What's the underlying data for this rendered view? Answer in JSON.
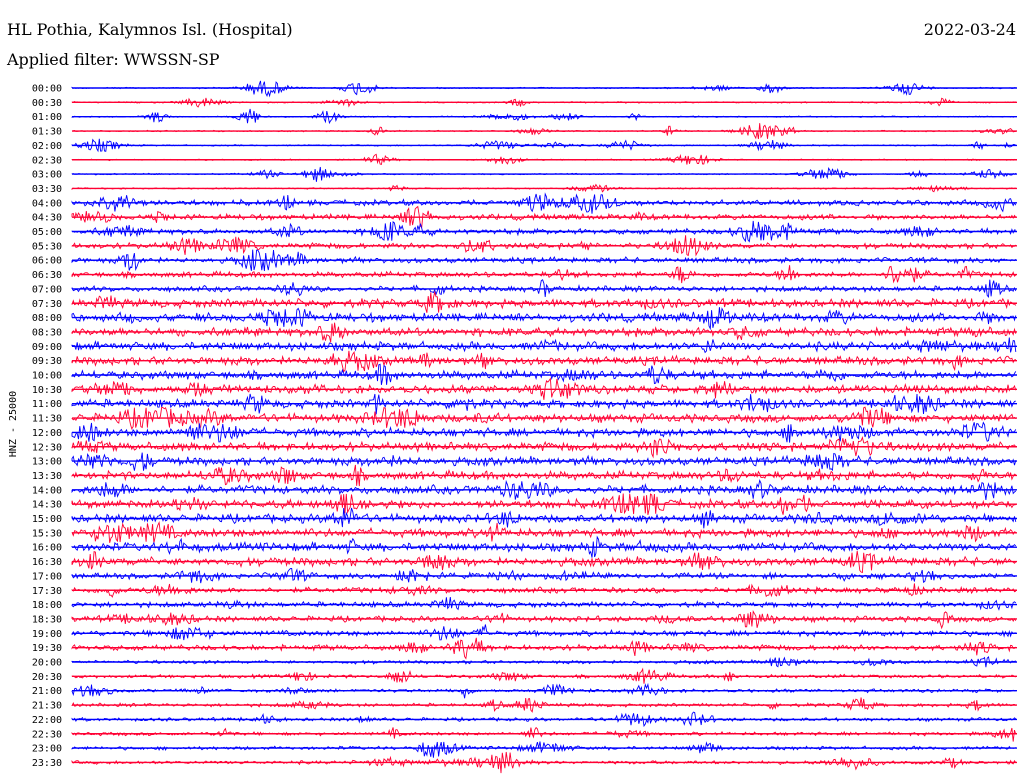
{
  "header": {
    "title": "HL Pothia, Kalymnos Isl. (Hospital)",
    "date": "2022-03-24",
    "filter": "Applied filter: WWSSN-SP"
  },
  "chart_data": {
    "type": "helicorder",
    "title": "HL Pothia, Kalymnos Isl. (Hospital)",
    "ylabel": "HNZ - 25000",
    "row_labels": [
      "00:00",
      "00:30",
      "01:00",
      "01:30",
      "02:00",
      "02:30",
      "03:00",
      "03:30",
      "04:00",
      "04:30",
      "05:00",
      "05:30",
      "06:00",
      "06:30",
      "07:00",
      "07:30",
      "08:00",
      "08:30",
      "09:00",
      "09:30",
      "10:00",
      "10:30",
      "11:00",
      "11:30",
      "12:00",
      "12:30",
      "13:00",
      "13:30",
      "14:00",
      "14:30",
      "15:00",
      "15:30",
      "16:00",
      "16:30",
      "17:00",
      "17:30",
      "18:00",
      "18:30",
      "19:00",
      "19:30",
      "20:00",
      "20:30",
      "21:00",
      "21:30",
      "22:00",
      "22:30",
      "23:00",
      "23:30"
    ],
    "row_colors": [
      "#0000ff",
      "#ff0033"
    ],
    "grid": false,
    "legend": "none"
  }
}
